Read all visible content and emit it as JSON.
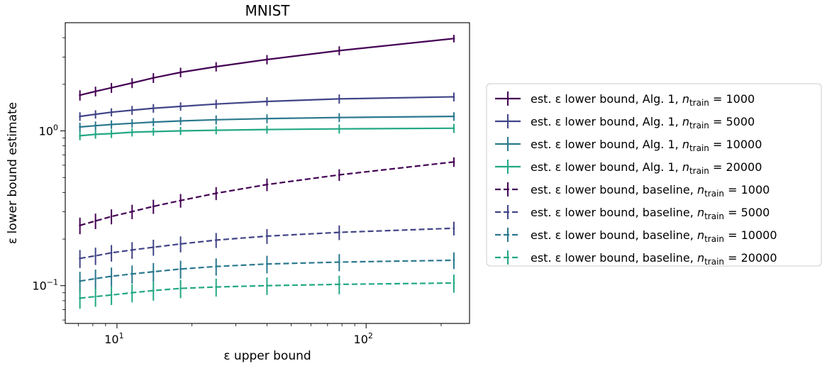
{
  "chart_data": {
    "type": "line",
    "title": "MNIST",
    "xlabel": "ε upper bound",
    "ylabel": "ε lower bound estimate",
    "xscale": "log",
    "yscale": "log",
    "xlim": [
      6.2,
      260
    ],
    "ylim": [
      0.057,
      5.0
    ],
    "x_ticks": [
      {
        "value": 10,
        "base": "10",
        "exp": "1"
      },
      {
        "value": 100,
        "base": "10",
        "exp": "2"
      }
    ],
    "y_ticks": [
      {
        "value": 0.1,
        "base": "10",
        "exp": "−1"
      },
      {
        "value": 1.0,
        "base": "10",
        "exp": "0"
      }
    ],
    "grid": false,
    "legend_position": "outside-right",
    "x": [
      7.1,
      8.2,
      9.5,
      11.5,
      14,
      18,
      25,
      40,
      78,
      225
    ],
    "series": [
      {
        "name_prefix": "est. ε lower bound, Alg. 1, ",
        "n_sym": "n",
        "n_sub": "train",
        "n_value": "= 1000",
        "color": "#440154",
        "dashed": false,
        "values": [
          1.7,
          1.8,
          1.9,
          2.04,
          2.2,
          2.39,
          2.6,
          2.89,
          3.3,
          3.95
        ],
        "err": [
          0.13,
          0.13,
          0.14,
          0.15,
          0.16,
          0.17,
          0.18,
          0.2,
          0.22,
          0.22
        ]
      },
      {
        "name_prefix": "est. ε lower bound, Alg. 1, ",
        "n_sym": "n",
        "n_sub": "train",
        "n_value": "= 5000",
        "color": "#414487",
        "dashed": false,
        "values": [
          1.24,
          1.28,
          1.32,
          1.36,
          1.4,
          1.44,
          1.49,
          1.55,
          1.61,
          1.66
        ],
        "err": [
          0.08,
          0.08,
          0.08,
          0.09,
          0.09,
          0.09,
          0.1,
          0.1,
          0.11,
          0.11
        ]
      },
      {
        "name_prefix": "est. ε lower bound, Alg. 1, ",
        "n_sym": "n",
        "n_sub": "train",
        "n_value": "= 10000",
        "color": "#2a788e",
        "dashed": false,
        "values": [
          1.06,
          1.08,
          1.1,
          1.12,
          1.14,
          1.16,
          1.18,
          1.2,
          1.22,
          1.24
        ],
        "err": [
          0.07,
          0.07,
          0.07,
          0.07,
          0.07,
          0.07,
          0.08,
          0.08,
          0.08,
          0.08
        ]
      },
      {
        "name_prefix": "est. ε lower bound, Alg. 1, ",
        "n_sym": "n",
        "n_sub": "train",
        "n_value": "= 20000",
        "color": "#22a884",
        "dashed": false,
        "values": [
          0.93,
          0.95,
          0.96,
          0.98,
          0.99,
          1.0,
          1.01,
          1.02,
          1.03,
          1.04
        ],
        "err": [
          0.06,
          0.06,
          0.06,
          0.06,
          0.06,
          0.06,
          0.06,
          0.06,
          0.07,
          0.07
        ]
      },
      {
        "name_prefix": "est. ε lower bound, baseline, ",
        "n_sym": "n",
        "n_sub": "train",
        "n_value": "= 1000",
        "color": "#440154",
        "dashed": true,
        "values": [
          0.245,
          0.262,
          0.28,
          0.301,
          0.325,
          0.355,
          0.395,
          0.45,
          0.52,
          0.63
        ],
        "err": [
          0.03,
          0.03,
          0.031,
          0.032,
          0.034,
          0.036,
          0.038,
          0.042,
          0.045,
          0.045
        ]
      },
      {
        "name_prefix": "est. ε lower bound, baseline, ",
        "n_sym": "n",
        "n_sub": "train",
        "n_value": "= 5000",
        "color": "#414487",
        "dashed": true,
        "values": [
          0.15,
          0.156,
          0.163,
          0.17,
          0.177,
          0.186,
          0.197,
          0.209,
          0.221,
          0.235
        ],
        "err": [
          0.02,
          0.02,
          0.02,
          0.021,
          0.021,
          0.022,
          0.022,
          0.023,
          0.024,
          0.024
        ]
      },
      {
        "name_prefix": "est. ε lower bound, baseline, ",
        "n_sym": "n",
        "n_sub": "train",
        "n_value": "= 10000",
        "color": "#2a788e",
        "dashed": true,
        "values": [
          0.107,
          0.111,
          0.115,
          0.119,
          0.123,
          0.128,
          0.133,
          0.138,
          0.142,
          0.146
        ],
        "err": [
          0.016,
          0.016,
          0.016,
          0.016,
          0.017,
          0.017,
          0.017,
          0.018,
          0.018,
          0.018
        ]
      },
      {
        "name_prefix": "est. ε lower bound, baseline, ",
        "n_sym": "n",
        "n_sub": "train",
        "n_value": "= 20000",
        "color": "#22a884",
        "dashed": true,
        "values": [
          0.083,
          0.085,
          0.087,
          0.09,
          0.093,
          0.096,
          0.098,
          0.1,
          0.102,
          0.104
        ],
        "err": [
          0.012,
          0.012,
          0.012,
          0.012,
          0.013,
          0.013,
          0.013,
          0.013,
          0.014,
          0.014
        ]
      }
    ]
  }
}
